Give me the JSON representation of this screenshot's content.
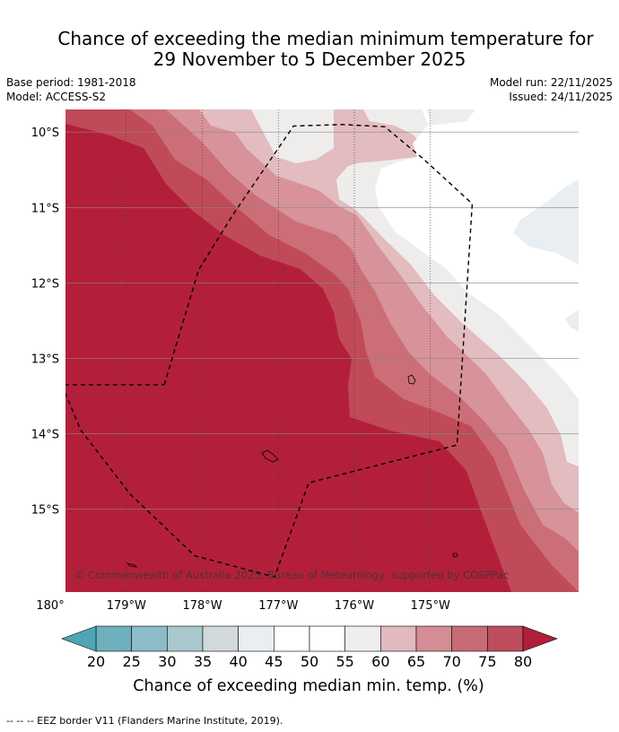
{
  "title_line1": "Chance of exceeding the median minimum temperature for",
  "title_line2": "29 November to 5 December 2025",
  "base_period": "Base period: 1981-2018",
  "model": "Model: ACCESS-S2",
  "model_run": "Model run: 22/11/2025",
  "issued": "Issued: 24/11/2025",
  "copyright": "© Commonwealth of Australia 2025, Bureau of Meteorology, supported by COSPPac",
  "eez_note": "-- -- -- EEZ border V11 (Flanders Marine Institute, 2019).",
  "chart_data": {
    "type": "heatmap",
    "title": "Chance of exceeding the median minimum temperature for 29 November to 5 December 2025",
    "xlabel": "",
    "ylabel": "",
    "xlim": [
      -179.8,
      -173.05
    ],
    "ylim": [
      -16.1,
      -9.7
    ],
    "x_ticks": [
      {
        "value": 180,
        "label": "180°"
      },
      {
        "value": -179,
        "label": "179°W"
      },
      {
        "value": -178,
        "label": "178°W"
      },
      {
        "value": -177,
        "label": "177°W"
      },
      {
        "value": -176,
        "label": "176°W"
      },
      {
        "value": -175,
        "label": "175°W"
      }
    ],
    "y_ticks": [
      {
        "value": -10,
        "label": "10°S"
      },
      {
        "value": -11,
        "label": "11°S"
      },
      {
        "value": -12,
        "label": "12°S"
      },
      {
        "value": -13,
        "label": "13°S"
      },
      {
        "value": -14,
        "label": "14°S"
      },
      {
        "value": -15,
        "label": "15°S"
      }
    ],
    "colorbar": {
      "label": "Chance of exceeding median min. temp. (%)",
      "levels": [
        20,
        25,
        30,
        35,
        40,
        45,
        50,
        55,
        60,
        65,
        70,
        75,
        80
      ],
      "colors": [
        "#6eb0bc",
        "#8bbcc7",
        "#a9c8cd",
        "#d1d9dc",
        "#e9eef2",
        "#ffffff",
        "#ffffff",
        "#efeded",
        "#e1b9be",
        "#d48d95",
        "#c76b76",
        "#bd4d5d"
      ],
      "under_color": "#4ea5b3",
      "over_color": "#b01e3c"
    },
    "regions": [
      {
        "name": "above-80",
        "value": 80,
        "color": "#b31f3b"
      },
      {
        "name": "75-80",
        "value": 77.5,
        "color": "#c04a58"
      },
      {
        "name": "70-75",
        "value": 72.5,
        "color": "#cc6e77"
      },
      {
        "name": "65-70",
        "value": 67.5,
        "color": "#d89299"
      },
      {
        "name": "60-65",
        "value": 62.5,
        "color": "#e2bcbf"
      },
      {
        "name": "55-60",
        "value": 57.5,
        "color": "#efedec"
      },
      {
        "name": "50-55",
        "value": 52.5,
        "color": "#ffffff"
      },
      {
        "name": "40-45",
        "value": 42.5,
        "color": "#e9eef2"
      }
    ],
    "eez_border": [
      [
        -178.5,
        -13.35
      ],
      [
        -178.05,
        -11.83
      ],
      [
        -177.6,
        -11.1
      ],
      [
        -176.8,
        -9.92
      ],
      [
        -176.15,
        -9.9
      ],
      [
        -175.6,
        -9.93
      ],
      [
        -175.1,
        -10.35
      ],
      [
        -174.45,
        -10.95
      ],
      [
        -174.65,
        -14.15
      ],
      [
        -176.6,
        -14.65
      ],
      [
        -177.05,
        -15.9
      ],
      [
        -178.1,
        -15.62
      ],
      [
        -178.95,
        -14.8
      ],
      [
        -179.6,
        -13.95
      ],
      [
        -179.85,
        -13.35
      ],
      [
        -178.5,
        -13.35
      ]
    ]
  }
}
